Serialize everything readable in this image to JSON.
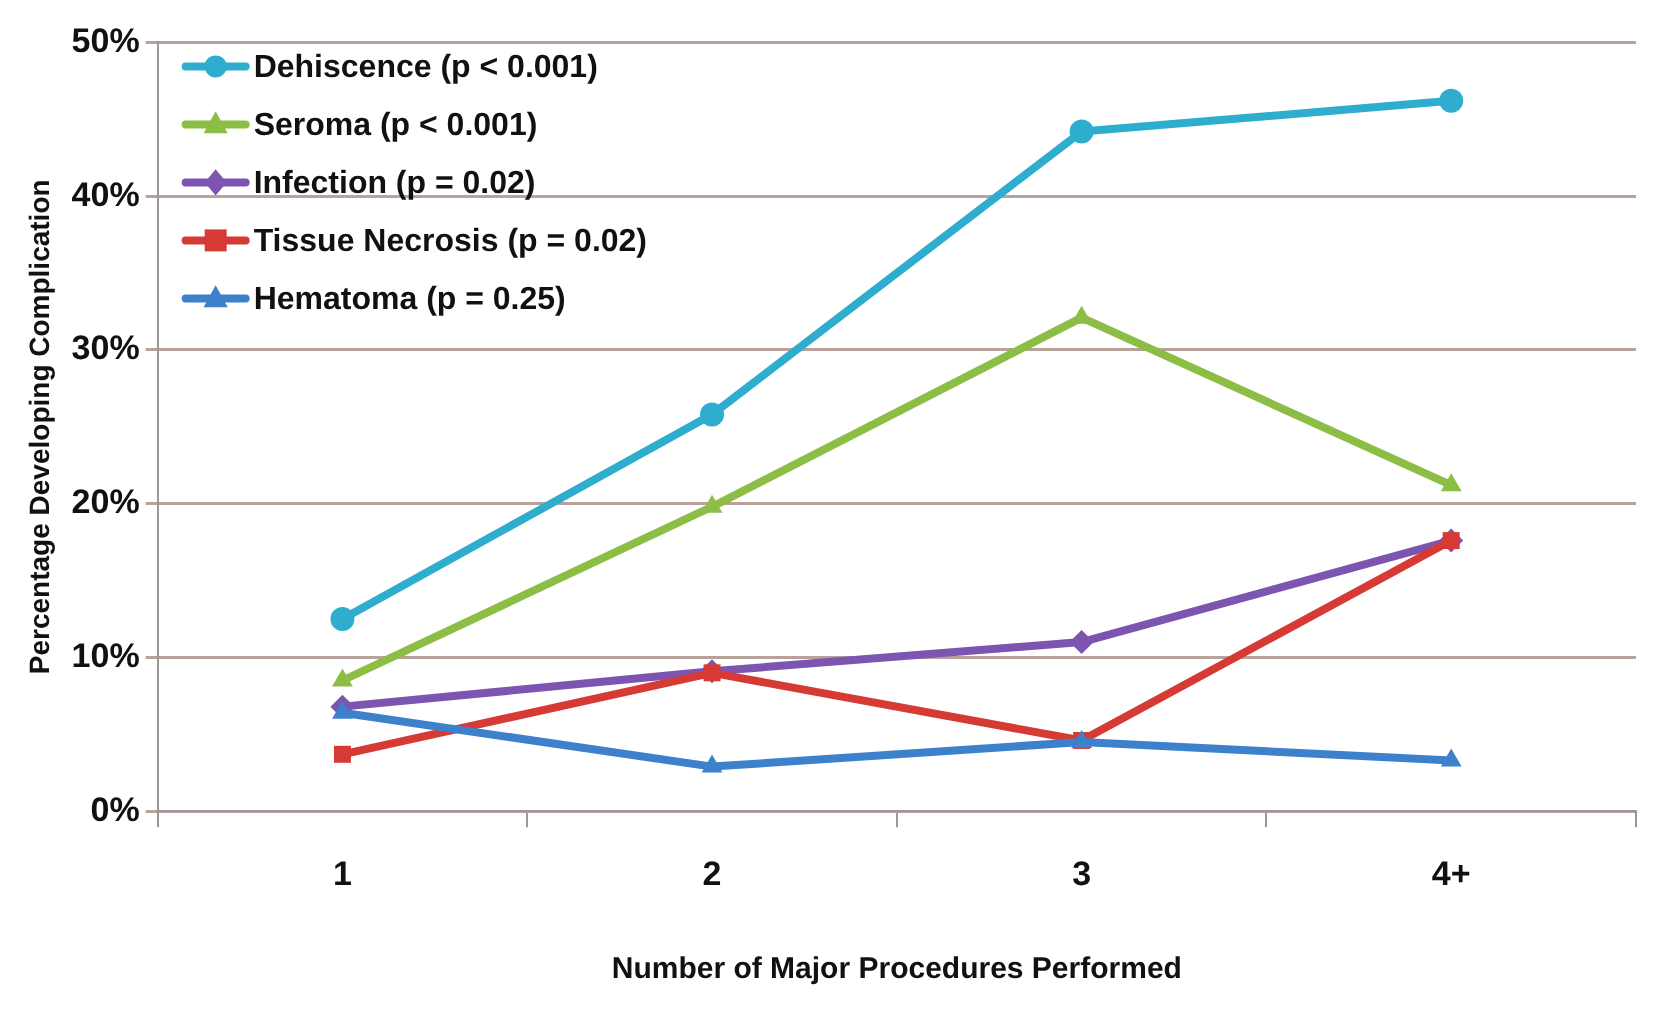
{
  "chart_data": {
    "type": "line",
    "xlabel": "Number of Major Procedures Performed",
    "ylabel": "Percentage Developing Complication",
    "categories": [
      "1",
      "2",
      "3",
      "4+"
    ],
    "series": [
      {
        "name": "Dehiscence (p < 0.001)",
        "color": "#2eadcf",
        "marker": "circle",
        "values": [
          12.5,
          25.8,
          44.2,
          46.2
        ]
      },
      {
        "name": "Seroma (p < 0.001)",
        "color": "#8cbd45",
        "marker": "triangle",
        "values": [
          8.5,
          19.8,
          32.1,
          21.2
        ]
      },
      {
        "name": "Infection (p = 0.02)",
        "color": "#7b55b0",
        "marker": "diamond",
        "values": [
          6.8,
          9.1,
          11.0,
          17.6
        ]
      },
      {
        "name": "Tissue Necrosis (p = 0.02)",
        "color": "#d63a35",
        "marker": "square",
        "values": [
          3.7,
          9.0,
          4.6,
          17.6
        ]
      },
      {
        "name": "Hematoma (p = 0.25)",
        "color": "#3d80cc",
        "marker": "triangle",
        "values": [
          6.4,
          2.9,
          4.5,
          3.3
        ]
      }
    ],
    "ylim": [
      0,
      50
    ],
    "yticks": [
      {
        "value": 0,
        "label": "0%"
      },
      {
        "value": 10,
        "label": "10%"
      },
      {
        "value": 20,
        "label": "20%"
      },
      {
        "value": 30,
        "label": "30%"
      },
      {
        "value": 40,
        "label": "40%"
      },
      {
        "value": 50,
        "label": "50%"
      }
    ],
    "grid": "y",
    "legend": "top left",
    "line_style": "solid"
  }
}
